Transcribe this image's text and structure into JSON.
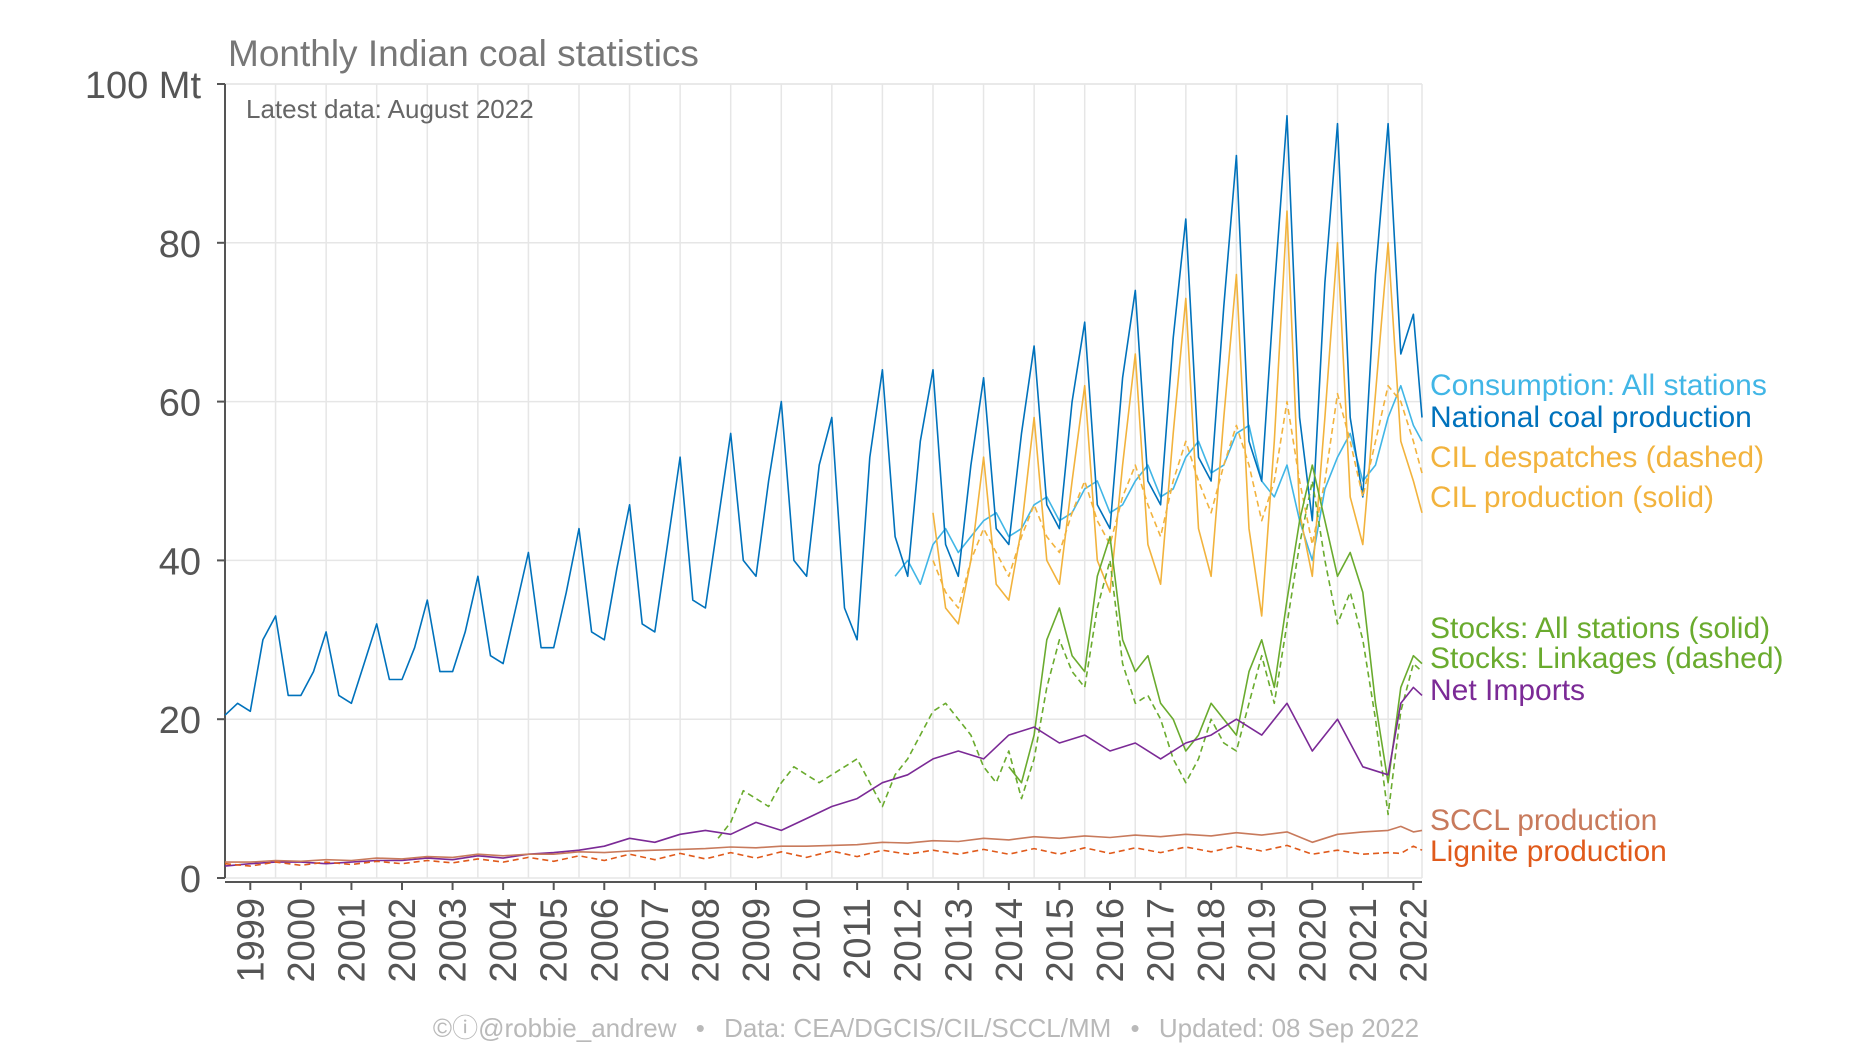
{
  "chart_data": {
    "type": "line",
    "title": "Monthly Indian coal statistics",
    "subtitle": "Latest data: August 2022",
    "ylabel_unit": "Mt",
    "ylim": [
      0,
      100
    ],
    "yticks": [
      0,
      20,
      40,
      60,
      80,
      100
    ],
    "ytick_labels": [
      "0",
      "20",
      "40",
      "60",
      "80",
      "100 Mt"
    ],
    "xlim": [
      1999,
      2022.67
    ],
    "xticks": [
      "1999",
      "2000",
      "2001",
      "2002",
      "2003",
      "2004",
      "2005",
      "2006",
      "2007",
      "2008",
      "2009",
      "2010",
      "2011",
      "2012",
      "2013",
      "2014",
      "2015",
      "2016",
      "2017",
      "2018",
      "2019",
      "2020",
      "2021",
      "2022"
    ],
    "grid": true,
    "legend_placement": "right",
    "series": [
      {
        "name": "Consumption: All stations",
        "color": "#41b6e6",
        "style": "solid",
        "x": [
          2012.25,
          2012.5,
          2012.75,
          2013.0,
          2013.25,
          2013.5,
          2013.75,
          2014.0,
          2014.25,
          2014.5,
          2014.75,
          2015.0,
          2015.25,
          2015.5,
          2015.75,
          2016.0,
          2016.25,
          2016.5,
          2016.75,
          2017.0,
          2017.25,
          2017.5,
          2017.75,
          2018.0,
          2018.25,
          2018.5,
          2018.75,
          2019.0,
          2019.25,
          2019.5,
          2019.75,
          2020.0,
          2020.25,
          2020.5,
          2020.75,
          2021.0,
          2021.25,
          2021.5,
          2021.75,
          2022.0,
          2022.25,
          2022.5,
          2022.67
        ],
        "values": [
          38,
          40,
          37,
          42,
          44,
          41,
          43,
          45,
          46,
          43,
          44,
          47,
          48,
          45,
          46,
          49,
          50,
          46,
          47,
          50,
          52,
          48,
          49,
          53,
          55,
          51,
          52,
          56,
          57,
          50,
          48,
          52,
          45,
          40,
          49,
          53,
          56,
          50,
          52,
          58,
          62,
          57,
          55
        ]
      },
      {
        "name": "National coal production",
        "color": "#0072bc",
        "style": "solid",
        "x": [
          1999.0,
          1999.25,
          1999.5,
          1999.75,
          2000.0,
          2000.25,
          2000.5,
          2000.75,
          2001.0,
          2001.25,
          2001.5,
          2001.75,
          2002.0,
          2002.25,
          2002.5,
          2002.75,
          2003.0,
          2003.25,
          2003.5,
          2003.75,
          2004.0,
          2004.25,
          2004.5,
          2004.75,
          2005.0,
          2005.25,
          2005.5,
          2005.75,
          2006.0,
          2006.25,
          2006.5,
          2006.75,
          2007.0,
          2007.25,
          2007.5,
          2007.75,
          2008.0,
          2008.25,
          2008.5,
          2008.75,
          2009.0,
          2009.25,
          2009.5,
          2009.75,
          2010.0,
          2010.25,
          2010.5,
          2010.75,
          2011.0,
          2011.25,
          2011.5,
          2011.75,
          2012.0,
          2012.25,
          2012.5,
          2012.75,
          2013.0,
          2013.25,
          2013.5,
          2013.75,
          2014.0,
          2014.25,
          2014.5,
          2014.75,
          2015.0,
          2015.25,
          2015.5,
          2015.75,
          2016.0,
          2016.25,
          2016.5,
          2016.75,
          2017.0,
          2017.25,
          2017.5,
          2017.75,
          2018.0,
          2018.25,
          2018.5,
          2018.75,
          2019.0,
          2019.25,
          2019.5,
          2019.75,
          2020.0,
          2020.25,
          2020.5,
          2020.75,
          2021.0,
          2021.25,
          2021.5,
          2021.75,
          2022.0,
          2022.25,
          2022.5,
          2022.67
        ],
        "values": [
          20.5,
          22,
          21,
          30,
          33,
          23,
          23,
          26,
          31,
          23,
          22,
          27,
          32,
          25,
          25,
          29,
          35,
          26,
          26,
          31,
          38,
          28,
          27,
          34,
          41,
          29,
          29,
          36,
          44,
          31,
          30,
          39,
          47,
          32,
          31,
          42,
          53,
          35,
          34,
          45,
          56,
          40,
          38,
          50,
          60,
          40,
          38,
          52,
          58,
          34,
          30,
          53,
          64,
          43,
          38,
          55,
          64,
          42,
          38,
          52,
          63,
          44,
          42,
          56,
          67,
          47,
          44,
          60,
          70,
          47,
          44,
          63,
          74,
          50,
          47,
          68,
          83,
          53,
          50,
          72,
          91,
          55,
          50,
          74,
          96,
          58,
          45,
          75,
          95,
          58,
          48,
          76,
          95,
          66,
          71,
          58
        ]
      },
      {
        "name": "CIL despatches (dashed)",
        "color": "#f2b33d",
        "style": "dashed",
        "x": [
          2013.0,
          2013.25,
          2013.5,
          2013.75,
          2014.0,
          2014.25,
          2014.5,
          2014.75,
          2015.0,
          2015.25,
          2015.5,
          2015.75,
          2016.0,
          2016.25,
          2016.5,
          2016.75,
          2017.0,
          2017.25,
          2017.5,
          2017.75,
          2018.0,
          2018.25,
          2018.5,
          2018.75,
          2019.0,
          2019.25,
          2019.5,
          2019.75,
          2020.0,
          2020.25,
          2020.5,
          2020.75,
          2021.0,
          2021.25,
          2021.5,
          2021.75,
          2022.0,
          2022.25,
          2022.5,
          2022.67
        ],
        "values": [
          40,
          36,
          34,
          40,
          44,
          41,
          38,
          43,
          47,
          43,
          41,
          46,
          50,
          45,
          42,
          48,
          52,
          47,
          43,
          50,
          55,
          50,
          46,
          52,
          57,
          52,
          45,
          50,
          60,
          50,
          42,
          50,
          61,
          55,
          48,
          55,
          62,
          60,
          55,
          51
        ]
      },
      {
        "name": "CIL production (solid)",
        "color": "#f2b33d",
        "style": "solid",
        "x": [
          2013.0,
          2013.25,
          2013.5,
          2013.75,
          2014.0,
          2014.25,
          2014.5,
          2014.75,
          2015.0,
          2015.25,
          2015.5,
          2015.75,
          2016.0,
          2016.25,
          2016.5,
          2016.75,
          2017.0,
          2017.25,
          2017.5,
          2017.75,
          2018.0,
          2018.25,
          2018.5,
          2018.75,
          2019.0,
          2019.25,
          2019.5,
          2019.75,
          2020.0,
          2020.25,
          2020.5,
          2020.75,
          2021.0,
          2021.25,
          2021.5,
          2021.75,
          2022.0,
          2022.25,
          2022.5,
          2022.67
        ],
        "values": [
          46,
          34,
          32,
          40,
          53,
          37,
          35,
          44,
          58,
          40,
          37,
          50,
          62,
          40,
          36,
          52,
          66,
          42,
          37,
          56,
          73,
          44,
          38,
          58,
          76,
          44,
          33,
          55,
          84,
          46,
          38,
          58,
          80,
          48,
          42,
          61,
          80,
          55,
          50,
          46
        ]
      },
      {
        "name": "Stocks: All stations (solid)",
        "color": "#6aab2e",
        "style": "solid",
        "x": [
          2014.5,
          2014.75,
          2015.0,
          2015.25,
          2015.5,
          2015.75,
          2016.0,
          2016.25,
          2016.5,
          2016.75,
          2017.0,
          2017.25,
          2017.5,
          2017.75,
          2018.0,
          2018.25,
          2018.5,
          2018.75,
          2019.0,
          2019.25,
          2019.5,
          2019.75,
          2020.0,
          2020.25,
          2020.5,
          2020.75,
          2021.0,
          2021.25,
          2021.5,
          2021.75,
          2022.0,
          2022.25,
          2022.5,
          2022.67
        ],
        "values": [
          14,
          12,
          18,
          30,
          34,
          28,
          26,
          38,
          43,
          30,
          26,
          28,
          22,
          20,
          16,
          18,
          22,
          20,
          18,
          26,
          30,
          24,
          35,
          45,
          52,
          45,
          38,
          41,
          36,
          22,
          12,
          24,
          28,
          27
        ]
      },
      {
        "name": "Stocks: Linkages (dashed)",
        "color": "#6aab2e",
        "style": "dashed",
        "x": [
          2008.75,
          2009.0,
          2009.25,
          2009.5,
          2009.75,
          2010.0,
          2010.25,
          2010.5,
          2010.75,
          2011.0,
          2011.25,
          2011.5,
          2011.75,
          2012.0,
          2012.25,
          2012.5,
          2012.75,
          2013.0,
          2013.25,
          2013.5,
          2013.75,
          2014.0,
          2014.25,
          2014.5,
          2014.75,
          2015.0,
          2015.25,
          2015.5,
          2015.75,
          2016.0,
          2016.25,
          2016.5,
          2016.75,
          2017.0,
          2017.25,
          2017.5,
          2017.75,
          2018.0,
          2018.25,
          2018.5,
          2018.75,
          2019.0,
          2019.25,
          2019.5,
          2019.75,
          2020.0,
          2020.25,
          2020.5,
          2020.75,
          2021.0,
          2021.25,
          2021.5,
          2021.75,
          2022.0,
          2022.25,
          2022.5,
          2022.67
        ],
        "values": [
          5,
          7,
          11,
          10,
          9,
          12,
          14,
          13,
          12,
          13,
          14,
          15,
          12,
          9,
          13,
          15,
          18,
          21,
          22,
          20,
          18,
          14,
          12,
          16,
          10,
          15,
          24,
          30,
          26,
          24,
          34,
          40,
          27,
          22,
          23,
          20,
          15,
          12,
          15,
          20,
          17,
          16,
          22,
          28,
          22,
          32,
          42,
          50,
          40,
          32,
          36,
          30,
          20,
          8,
          21,
          27,
          26
        ]
      },
      {
        "name": "Net Imports",
        "color": "#7b2a96",
        "style": "solid",
        "x": [
          1999.0,
          1999.5,
          2000.0,
          2000.5,
          2001.0,
          2001.5,
          2002.0,
          2002.5,
          2003.0,
          2003.5,
          2004.0,
          2004.5,
          2005.0,
          2005.5,
          2006.0,
          2006.5,
          2007.0,
          2007.5,
          2008.0,
          2008.5,
          2009.0,
          2009.5,
          2010.0,
          2010.5,
          2011.0,
          2011.5,
          2012.0,
          2012.5,
          2013.0,
          2013.5,
          2014.0,
          2014.5,
          2015.0,
          2015.5,
          2016.0,
          2016.5,
          2017.0,
          2017.5,
          2018.0,
          2018.5,
          2019.0,
          2019.5,
          2020.0,
          2020.5,
          2021.0,
          2021.5,
          2022.0,
          2022.25,
          2022.5,
          2022.67
        ],
        "values": [
          1.5,
          1.8,
          2,
          2,
          1.8,
          2,
          2.2,
          2.2,
          2.5,
          2.3,
          2.8,
          2.5,
          3,
          3.2,
          3.5,
          4,
          5,
          4.5,
          5.5,
          6,
          5.5,
          7,
          6,
          7.5,
          9,
          10,
          12,
          13,
          15,
          16,
          15,
          18,
          19,
          17,
          18,
          16,
          17,
          15,
          17,
          18,
          20,
          18,
          22,
          16,
          20,
          14,
          13,
          22,
          24,
          23
        ]
      },
      {
        "name": "SCCL production",
        "color": "#c87a5c",
        "style": "solid",
        "x": [
          1999.0,
          1999.5,
          2000.0,
          2000.5,
          2001.0,
          2001.5,
          2002.0,
          2002.5,
          2003.0,
          2003.5,
          2004.0,
          2004.5,
          2005.0,
          2005.5,
          2006.0,
          2006.5,
          2007.0,
          2007.5,
          2008.0,
          2008.5,
          2009.0,
          2009.5,
          2010.0,
          2010.5,
          2011.0,
          2011.5,
          2012.0,
          2012.5,
          2013.0,
          2013.5,
          2014.0,
          2014.5,
          2015.0,
          2015.5,
          2016.0,
          2016.5,
          2017.0,
          2017.5,
          2018.0,
          2018.5,
          2019.0,
          2019.5,
          2020.0,
          2020.5,
          2021.0,
          2021.5,
          2022.0,
          2022.25,
          2022.5,
          2022.67
        ],
        "values": [
          2,
          2,
          2.2,
          2.1,
          2.3,
          2.2,
          2.5,
          2.4,
          2.7,
          2.6,
          3,
          2.8,
          3,
          3,
          3.3,
          3.2,
          3.4,
          3.5,
          3.6,
          3.7,
          3.9,
          3.8,
          4,
          4,
          4.1,
          4.2,
          4.5,
          4.4,
          4.7,
          4.6,
          5,
          4.8,
          5.2,
          5,
          5.3,
          5.1,
          5.4,
          5.2,
          5.5,
          5.3,
          5.7,
          5.4,
          5.8,
          4.5,
          5.5,
          5.8,
          6,
          6.5,
          5.8,
          6
        ]
      },
      {
        "name": "Lignite production",
        "color": "#e05a1b",
        "style": "dashed",
        "x": [
          1999.0,
          1999.5,
          2000.0,
          2000.5,
          2001.0,
          2001.5,
          2002.0,
          2002.5,
          2003.0,
          2003.5,
          2004.0,
          2004.5,
          2005.0,
          2005.5,
          2006.0,
          2006.5,
          2007.0,
          2007.5,
          2008.0,
          2008.5,
          2009.0,
          2009.5,
          2010.0,
          2010.5,
          2011.0,
          2011.5,
          2012.0,
          2012.5,
          2013.0,
          2013.5,
          2014.0,
          2014.5,
          2015.0,
          2015.5,
          2016.0,
          2016.5,
          2017.0,
          2017.5,
          2018.0,
          2018.5,
          2019.0,
          2019.5,
          2020.0,
          2020.5,
          2021.0,
          2021.5,
          2022.0,
          2022.25,
          2022.5,
          2022.67
        ],
        "values": [
          1.8,
          1.5,
          2,
          1.6,
          2,
          1.7,
          2.1,
          1.8,
          2.2,
          1.9,
          2.4,
          2,
          2.6,
          2.1,
          2.8,
          2.2,
          3,
          2.3,
          3.1,
          2.4,
          3.2,
          2.5,
          3.3,
          2.6,
          3.4,
          2.7,
          3.5,
          3,
          3.5,
          3,
          3.6,
          3,
          3.7,
          3,
          3.8,
          3.1,
          3.8,
          3.2,
          3.9,
          3.3,
          4,
          3.4,
          4.1,
          3,
          3.5,
          3,
          3.2,
          3.1,
          4,
          3.5
        ]
      }
    ]
  },
  "legend": [
    {
      "label": "Consumption: All stations",
      "color": "#41b6e6"
    },
    {
      "label": "National coal production",
      "color": "#0072bc"
    },
    {
      "label": "CIL despatches (dashed)",
      "color": "#f2b33d"
    },
    {
      "label": "CIL production (solid)",
      "color": "#f2b33d"
    },
    {
      "label": "Stocks: All stations (solid)",
      "color": "#6aab2e"
    },
    {
      "label": "Stocks: Linkages (dashed)",
      "color": "#6aab2e"
    },
    {
      "label": "Net Imports",
      "color": "#7b2a96"
    },
    {
      "label": "SCCL production",
      "color": "#c87a5c"
    },
    {
      "label": "Lignite production",
      "color": "#e05a1b"
    }
  ],
  "footer": {
    "author": "©ⓘ@robbie_andrew",
    "sep1": "•",
    "source": "Data: CEA/DGCIS/CIL/SCCL/MM",
    "sep2": "•",
    "updated": "Updated: 08 Sep 2022"
  }
}
